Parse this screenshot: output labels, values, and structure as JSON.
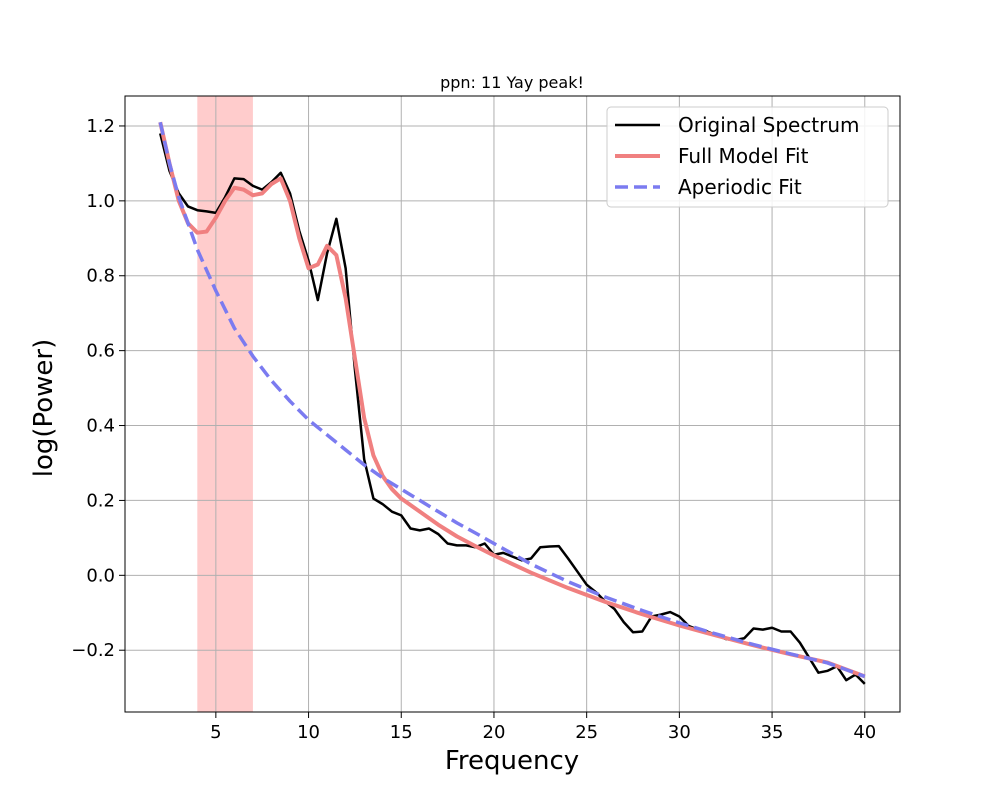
{
  "chart_data": {
    "type": "line",
    "title": "ppn: 11 Yay peak!",
    "xlabel": "Frequency",
    "ylabel": "log(Power)",
    "xlim": [
      0.1,
      41.9
    ],
    "ylim": [
      -0.365,
      1.28
    ],
    "xticks": [
      5,
      10,
      15,
      20,
      25,
      30,
      35,
      40
    ],
    "yticks": [
      -0.2,
      0.0,
      0.2,
      0.4,
      0.6,
      0.8,
      1.0,
      1.2
    ],
    "ytick_labels": [
      "−0.2",
      "0.0",
      "0.2",
      "0.4",
      "0.6",
      "0.8",
      "1.0",
      "1.2"
    ],
    "grid": true,
    "legend_position": "upper right",
    "highlight_band": {
      "x_start": 4,
      "x_end": 7,
      "color": "#ffcccc"
    },
    "series": [
      {
        "name": "Original Spectrum",
        "color": "#000000",
        "style": "solid",
        "x": [
          2,
          2.5,
          3,
          3.5,
          4,
          4.5,
          5,
          5.5,
          6,
          6.5,
          7,
          7.5,
          8,
          8.5,
          9,
          9.5,
          10,
          10.5,
          11,
          11.5,
          12,
          12.5,
          13,
          13.5,
          14,
          14.5,
          15,
          15.5,
          16,
          16.5,
          17,
          17.5,
          18,
          18.5,
          19,
          19.5,
          20,
          20.5,
          21,
          21.5,
          22,
          22.5,
          23,
          23.5,
          24,
          24.5,
          25,
          25.5,
          26,
          26.5,
          27,
          27.5,
          28,
          28.5,
          29,
          29.5,
          30,
          30.5,
          31,
          31.5,
          32,
          32.5,
          33,
          33.5,
          34,
          34.5,
          35,
          35.5,
          36,
          36.5,
          37,
          37.5,
          38,
          38.5,
          39,
          39.5,
          40
        ],
        "y": [
          1.18,
          1.08,
          1.02,
          0.985,
          0.975,
          0.972,
          0.968,
          1.01,
          1.06,
          1.058,
          1.04,
          1.03,
          1.05,
          1.075,
          1.02,
          0.92,
          0.84,
          0.735,
          0.86,
          0.952,
          0.82,
          0.55,
          0.31,
          0.205,
          0.19,
          0.17,
          0.16,
          0.125,
          0.12,
          0.125,
          0.11,
          0.085,
          0.08,
          0.08,
          0.075,
          0.085,
          0.055,
          0.06,
          0.05,
          0.04,
          0.045,
          0.075,
          0.077,
          0.078,
          0.045,
          0.01,
          -0.025,
          -0.045,
          -0.07,
          -0.09,
          -0.125,
          -0.152,
          -0.15,
          -0.11,
          -0.105,
          -0.098,
          -0.11,
          -0.135,
          -0.145,
          -0.15,
          -0.16,
          -0.17,
          -0.173,
          -0.168,
          -0.142,
          -0.145,
          -0.14,
          -0.15,
          -0.15,
          -0.18,
          -0.22,
          -0.26,
          -0.255,
          -0.243,
          -0.28,
          -0.265,
          -0.29
        ]
      },
      {
        "name": "Full Model Fit",
        "color": "#f08080",
        "style": "solid",
        "x": [
          2,
          2.5,
          3,
          3.5,
          4,
          4.5,
          5,
          5.5,
          6,
          6.5,
          7,
          7.5,
          8,
          8.5,
          9,
          9.5,
          10,
          10.5,
          11,
          11.5,
          12,
          12.5,
          13,
          13.5,
          14,
          14.5,
          15,
          16,
          17,
          18,
          19,
          20,
          22,
          24,
          26,
          28,
          30,
          32,
          34,
          36,
          38,
          40
        ],
        "y": [
          1.21,
          1.1,
          1.0,
          0.94,
          0.915,
          0.918,
          0.955,
          1.0,
          1.035,
          1.03,
          1.015,
          1.02,
          1.045,
          1.06,
          1.0,
          0.9,
          0.82,
          0.83,
          0.88,
          0.855,
          0.74,
          0.58,
          0.42,
          0.32,
          0.265,
          0.23,
          0.205,
          0.17,
          0.135,
          0.104,
          0.078,
          0.053,
          0.007,
          -0.034,
          -0.071,
          -0.104,
          -0.134,
          -0.161,
          -0.187,
          -0.211,
          -0.233,
          -0.27
        ]
      },
      {
        "name": "Aperiodic Fit",
        "color": "#7b7bf0",
        "style": "dashed",
        "x": [
          2,
          2.5,
          3,
          3.5,
          4,
          5,
          6,
          7,
          8,
          9,
          10,
          11,
          12,
          13,
          14,
          15,
          16,
          17,
          18,
          19,
          20,
          22,
          24,
          26,
          28,
          30,
          32,
          34,
          36,
          38,
          40
        ],
        "y": [
          1.21,
          1.1,
          1.01,
          0.94,
          0.87,
          0.76,
          0.66,
          0.585,
          0.52,
          0.465,
          0.415,
          0.375,
          0.335,
          0.295,
          0.26,
          0.23,
          0.2,
          0.17,
          0.14,
          0.113,
          0.085,
          0.03,
          -0.017,
          -0.058,
          -0.094,
          -0.127,
          -0.157,
          -0.185,
          -0.21,
          -0.234,
          -0.27
        ]
      }
    ]
  }
}
